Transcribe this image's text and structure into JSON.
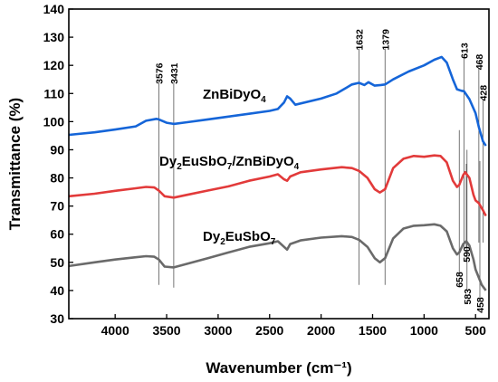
{
  "chart_data": {
    "type": "line",
    "xlabel": "Wavenumber (cm⁻¹)",
    "ylabel": "Transmittance (%)",
    "xlim": [
      4450,
      370
    ],
    "ylim": [
      30,
      140
    ],
    "x_ticks": [
      4000,
      3500,
      3000,
      2500,
      2000,
      1500,
      1000,
      500
    ],
    "y_ticks": [
      30,
      40,
      50,
      60,
      70,
      80,
      90,
      100,
      110,
      120,
      130,
      140
    ],
    "series": [
      {
        "name": "ZnBiDyO4",
        "label_main": "ZnBiDyO",
        "label_sub": "4",
        "color": "#1565d8",
        "points": [
          [
            4450,
            95.3
          ],
          [
            4200,
            96.2
          ],
          [
            4000,
            97.2
          ],
          [
            3800,
            98.3
          ],
          [
            3700,
            100.3
          ],
          [
            3600,
            101.0
          ],
          [
            3576,
            100.8
          ],
          [
            3500,
            99.6
          ],
          [
            3431,
            99.2
          ],
          [
            3300,
            99.8
          ],
          [
            3100,
            100.8
          ],
          [
            2900,
            101.8
          ],
          [
            2700,
            102.8
          ],
          [
            2500,
            103.8
          ],
          [
            2420,
            104.5
          ],
          [
            2360,
            106.8
          ],
          [
            2330,
            109.0
          ],
          [
            2300,
            108.2
          ],
          [
            2250,
            106.0
          ],
          [
            2000,
            108.2
          ],
          [
            1850,
            110.0
          ],
          [
            1700,
            113.2
          ],
          [
            1632,
            113.8
          ],
          [
            1580,
            113.0
          ],
          [
            1540,
            114.0
          ],
          [
            1480,
            112.8
          ],
          [
            1420,
            113.0
          ],
          [
            1379,
            113.2
          ],
          [
            1300,
            115.0
          ],
          [
            1150,
            117.8
          ],
          [
            1000,
            120.0
          ],
          [
            900,
            122.0
          ],
          [
            830,
            123.0
          ],
          [
            780,
            121.0
          ],
          [
            720,
            115.0
          ],
          [
            680,
            111.5
          ],
          [
            640,
            111.0
          ],
          [
            613,
            110.8
          ],
          [
            560,
            108.0
          ],
          [
            500,
            103.0
          ],
          [
            468,
            98.0
          ],
          [
            428,
            93.0
          ],
          [
            400,
            91.4
          ]
        ]
      },
      {
        "name": "Dy2EuSbO7/ZnBiDyO4",
        "label_main": "Dy",
        "label_sub": "2",
        "label_main2": "EuSbO",
        "label_sub2": "7",
        "label_main3": "/ZnBiDyO",
        "label_sub3": "4",
        "color": "#e23a3a",
        "points": [
          [
            4450,
            73.5
          ],
          [
            4200,
            74.4
          ],
          [
            4000,
            75.4
          ],
          [
            3800,
            76.3
          ],
          [
            3700,
            76.8
          ],
          [
            3620,
            76.6
          ],
          [
            3576,
            75.5
          ],
          [
            3520,
            73.5
          ],
          [
            3431,
            73.0
          ],
          [
            3300,
            74.0
          ],
          [
            3100,
            75.5
          ],
          [
            2900,
            77.0
          ],
          [
            2700,
            79.0
          ],
          [
            2500,
            80.5
          ],
          [
            2420,
            81.3
          ],
          [
            2360,
            79.5
          ],
          [
            2330,
            79.0
          ],
          [
            2300,
            80.5
          ],
          [
            2200,
            82.0
          ],
          [
            2000,
            83.0
          ],
          [
            1800,
            83.8
          ],
          [
            1700,
            83.5
          ],
          [
            1632,
            82.5
          ],
          [
            1550,
            80.0
          ],
          [
            1480,
            76.0
          ],
          [
            1430,
            74.8
          ],
          [
            1379,
            76.0
          ],
          [
            1300,
            83.5
          ],
          [
            1200,
            86.8
          ],
          [
            1100,
            87.8
          ],
          [
            1000,
            87.5
          ],
          [
            900,
            88.0
          ],
          [
            840,
            87.8
          ],
          [
            780,
            85.5
          ],
          [
            720,
            79.0
          ],
          [
            680,
            76.8
          ],
          [
            658,
            77.5
          ],
          [
            620,
            81.0
          ],
          [
            600,
            82.0
          ],
          [
            560,
            80.0
          ],
          [
            520,
            74.0
          ],
          [
            500,
            72.0
          ],
          [
            468,
            71.0
          ],
          [
            428,
            68.5
          ],
          [
            400,
            66.5
          ]
        ]
      },
      {
        "name": "Dy2EuSbO7",
        "label_main": "Dy",
        "label_sub": "2",
        "label_main2": "EuSbO",
        "label_sub2": "7",
        "color": "#6a6a6a",
        "points": [
          [
            4450,
            48.7
          ],
          [
            4200,
            50.0
          ],
          [
            4000,
            51.0
          ],
          [
            3800,
            51.8
          ],
          [
            3700,
            52.2
          ],
          [
            3620,
            52.0
          ],
          [
            3576,
            51.0
          ],
          [
            3520,
            48.5
          ],
          [
            3431,
            48.2
          ],
          [
            3300,
            49.5
          ],
          [
            3100,
            51.5
          ],
          [
            2900,
            53.5
          ],
          [
            2700,
            55.5
          ],
          [
            2500,
            56.8
          ],
          [
            2420,
            57.5
          ],
          [
            2360,
            55.5
          ],
          [
            2330,
            54.5
          ],
          [
            2300,
            56.5
          ],
          [
            2200,
            57.8
          ],
          [
            2000,
            58.8
          ],
          [
            1800,
            59.3
          ],
          [
            1700,
            59.0
          ],
          [
            1632,
            58.0
          ],
          [
            1550,
            55.5
          ],
          [
            1480,
            51.5
          ],
          [
            1430,
            50.0
          ],
          [
            1379,
            51.5
          ],
          [
            1300,
            58.5
          ],
          [
            1200,
            62.0
          ],
          [
            1100,
            63.0
          ],
          [
            1000,
            63.2
          ],
          [
            900,
            63.5
          ],
          [
            840,
            63.0
          ],
          [
            780,
            61.0
          ],
          [
            720,
            55.0
          ],
          [
            680,
            52.8
          ],
          [
            658,
            53.5
          ],
          [
            620,
            56.5
          ],
          [
            590,
            57.5
          ],
          [
            560,
            56.0
          ],
          [
            520,
            51.0
          ],
          [
            500,
            47.5
          ],
          [
            468,
            44.5
          ],
          [
            440,
            42.0
          ],
          [
            400,
            40.0
          ]
        ]
      }
    ],
    "vertical_lines": [
      {
        "x": 3576,
        "y_from": 42,
        "y_to": 114,
        "label": "3576",
        "label_pos": "top"
      },
      {
        "x": 3431,
        "y_from": 41,
        "y_to": 114,
        "label": "3431",
        "label_pos": "top"
      },
      {
        "x": 1632,
        "y_from": 42,
        "y_to": 126,
        "label": "1632",
        "label_pos": "top"
      },
      {
        "x": 1379,
        "y_from": 42,
        "y_to": 126,
        "label": "1379",
        "label_pos": "top"
      },
      {
        "x": 613,
        "y_from": 55,
        "y_to": 123,
        "label": "613",
        "label_pos": "top"
      },
      {
        "x": 468,
        "y_from": 57,
        "y_to": 119,
        "label": "468",
        "label_pos": "top"
      },
      {
        "x": 428,
        "y_from": 57,
        "y_to": 108,
        "label": "428",
        "label_pos": "top"
      },
      {
        "x": 658,
        "y_from": 46,
        "y_to": 97,
        "label": "658",
        "label_pos": "bottom"
      },
      {
        "x": 590,
        "y_from": 55,
        "y_to": 85,
        "label": "590",
        "label_pos": "bottom"
      },
      {
        "x": 583,
        "y_from": 40,
        "y_to": 90,
        "label": "583",
        "label_pos": "bottom"
      },
      {
        "x": 458,
        "y_from": 37,
        "y_to": 86,
        "label": "458",
        "label_pos": "bottom"
      }
    ],
    "grid": false,
    "legend": "none"
  }
}
